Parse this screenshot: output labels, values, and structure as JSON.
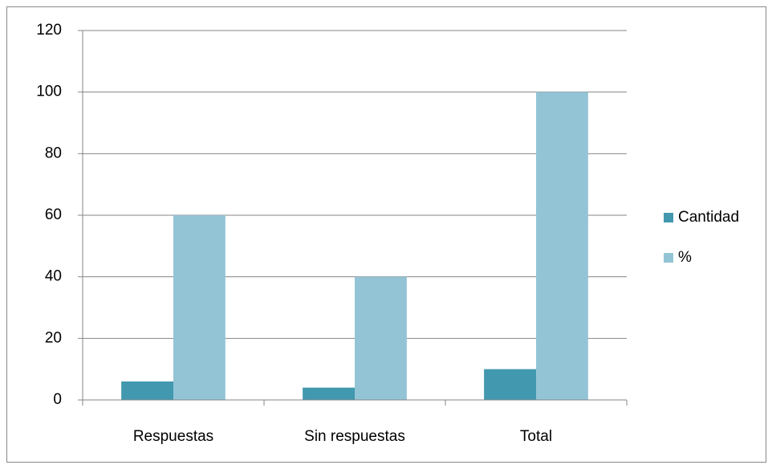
{
  "chart_data": {
    "type": "bar",
    "categories": [
      "Respuestas",
      "Sin respuestas",
      "Total"
    ],
    "series": [
      {
        "name": "Cantidad",
        "color": "#4198af",
        "values": [
          6,
          4,
          10
        ]
      },
      {
        "name": "%",
        "color": "#93c4d6",
        "values": [
          60,
          40,
          100
        ]
      }
    ],
    "ylim": [
      0,
      120
    ],
    "yticks": [
      0,
      20,
      40,
      60,
      80,
      100,
      120
    ],
    "grid": true,
    "legend": "right"
  }
}
